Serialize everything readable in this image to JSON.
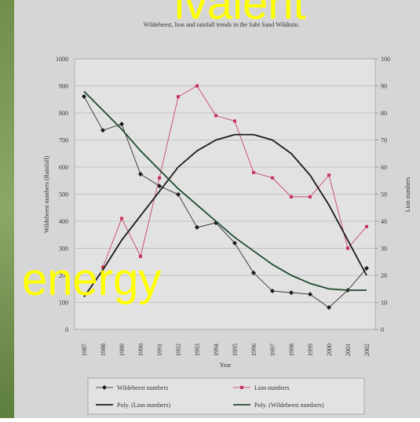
{
  "chart_data": {
    "type": "line",
    "title": "Wildebeest, lion and rainfall trends in the Sabi Sand Wildtuin.",
    "x_label": "Year",
    "y_label": "Wildebeest numbers (Rainfall)",
    "y2_label": "Lion numbers",
    "categories": [
      "1987",
      "1988",
      "1989",
      "1990",
      "1991",
      "1992",
      "1993",
      "1994",
      "1995",
      "1996",
      "1997",
      "1998",
      "1999",
      "2000",
      "2001",
      "2002"
    ],
    "ylim": [
      0,
      1000
    ],
    "yticks": [
      0,
      100,
      200,
      300,
      400,
      500,
      600,
      700,
      800,
      900,
      1000
    ],
    "y2lim": [
      0,
      100
    ],
    "y2ticks": [
      0,
      10,
      20,
      30,
      40,
      50,
      60,
      70,
      80,
      90,
      100
    ],
    "grid": true,
    "series": [
      {
        "name": "Wildebeest numbers",
        "color": "#1a1a1a",
        "marker": "diamond",
        "values": [
          861,
          736,
          759,
          574,
          530,
          499,
          377,
          394,
          319,
          209,
          142,
          136,
          130,
          81,
          145,
          226
        ]
      },
      {
        "name": "Lion numbers",
        "color": "#c8325a",
        "marker": "square",
        "axis": "y2",
        "values": [
          null,
          23,
          41,
          27,
          56,
          86,
          90,
          79,
          77,
          58,
          56,
          49,
          49,
          57,
          30,
          38
        ]
      },
      {
        "name": "Poly. (Lion numbers)",
        "color": "#1a1a1a",
        "axis": "y2",
        "values": [
          12,
          22,
          33,
          42,
          51,
          60,
          66,
          70,
          72,
          72,
          70,
          65,
          57,
          46,
          33,
          20
        ]
      },
      {
        "name": "Poly. (Wildebeest numbers)",
        "color": "#1d4a2c",
        "values": [
          880,
          810,
          740,
          660,
          590,
          520,
          460,
          400,
          340,
          290,
          240,
          200,
          170,
          150,
          145,
          145
        ]
      }
    ]
  },
  "overlay_texts": [
    "ivalent",
    "energy"
  ]
}
